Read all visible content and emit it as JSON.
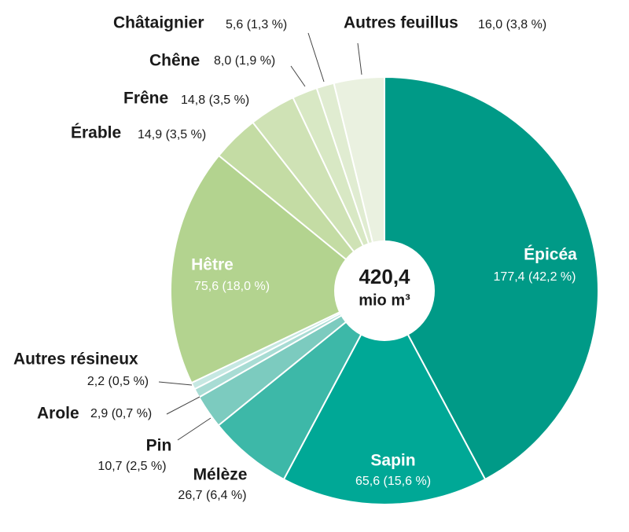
{
  "chart_data": {
    "type": "pie",
    "center_label": "420,4",
    "center_unit": "mio m³",
    "categories": [
      "Épicéa",
      "Sapin",
      "Mélèze",
      "Pin",
      "Arole",
      "Autres résineux",
      "Hêtre",
      "Érable",
      "Frêne",
      "Chêne",
      "Châtaignier",
      "Autres feuillus"
    ],
    "values": [
      177.4,
      65.6,
      26.7,
      10.7,
      2.9,
      2.2,
      75.6,
      14.9,
      14.8,
      8.0,
      5.6,
      16.0
    ],
    "value_labels": [
      "177,4 (42,2 %)",
      "65,6 (15,6 %)",
      "26,7 (6,4 %)",
      "10,7 (2,5 %)",
      "2,9 (0,7 %)",
      "2,2 (0,5 %)",
      "75,6 (18,0 %)",
      "14,9 (3,5 %)",
      "14,8 (3,5 %)",
      "8,0 (1,9 %)",
      "5,6 (1,3 %)",
      "16,0 (3,8 %)"
    ],
    "colors": [
      "#009a87",
      "#00a896",
      "#3db8a8",
      "#7ccbbf",
      "#a8dcd4",
      "#c6e8e2",
      "#b3d38f",
      "#c4dca4",
      "#cfe2b5",
      "#d8e8c4",
      "#e0ecd1",
      "#eaf1e0"
    ]
  }
}
